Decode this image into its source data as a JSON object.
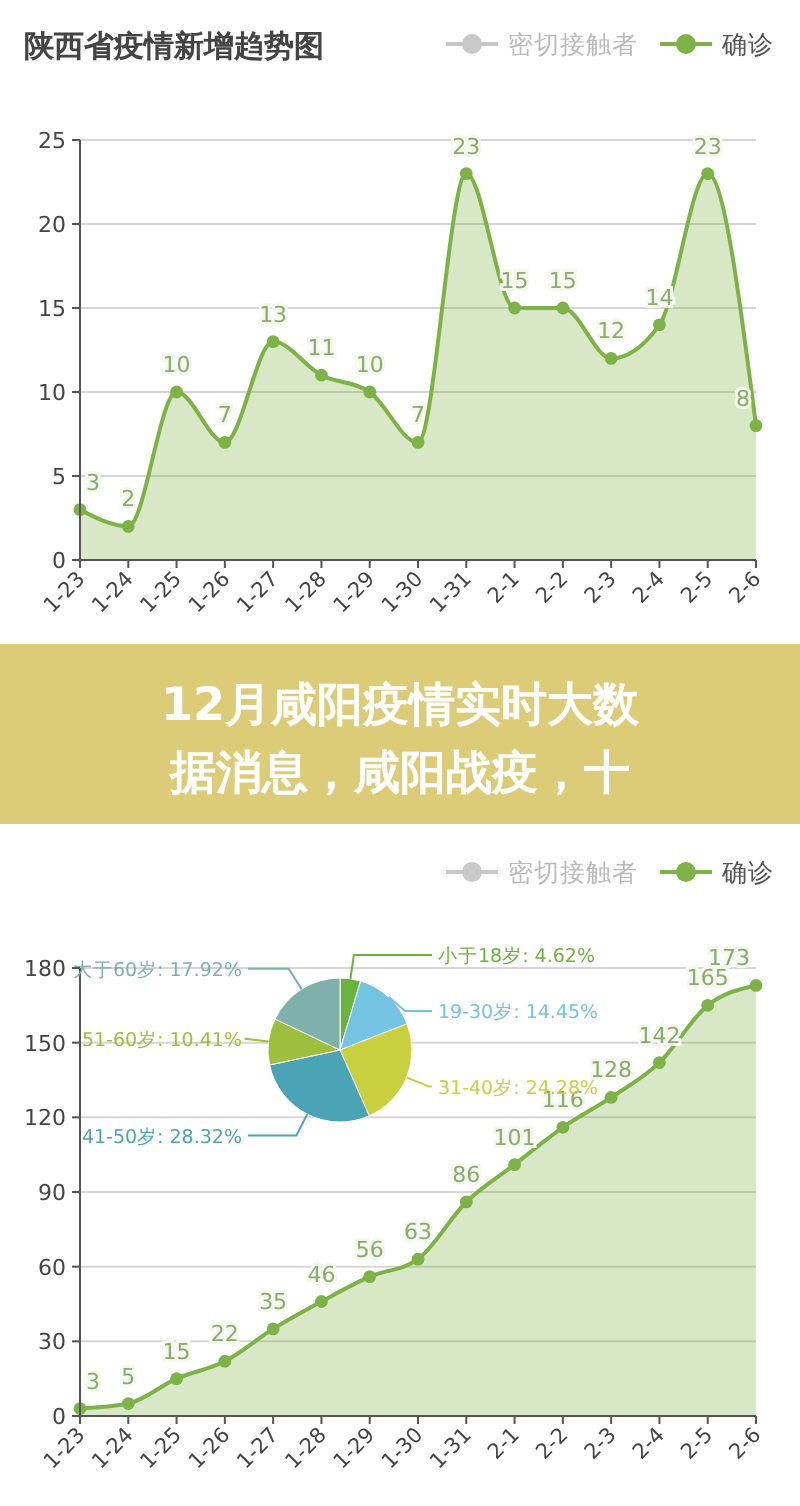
{
  "chart_data": [
    {
      "type": "area",
      "title": "陕西省疫情新增趋势图",
      "categories": [
        "1-23",
        "1-24",
        "1-25",
        "1-26",
        "1-27",
        "1-28",
        "1-29",
        "1-30",
        "1-31",
        "2-1",
        "2-2",
        "2-3",
        "2-4",
        "2-5",
        "2-6"
      ],
      "series": [
        {
          "name": "密切接触者",
          "color": "#c8c8c8",
          "values": [
            null,
            null,
            null,
            null,
            null,
            null,
            null,
            null,
            null,
            null,
            null,
            null,
            null,
            null,
            null
          ]
        },
        {
          "name": "确诊",
          "color": "#7db346",
          "values": [
            3,
            2,
            10,
            7,
            13,
            11,
            10,
            7,
            23,
            15,
            15,
            12,
            14,
            23,
            8
          ]
        }
      ],
      "ylim": [
        0,
        25
      ],
      "yticks": [
        0,
        5,
        10,
        15,
        20,
        25
      ],
      "grid": "y",
      "legend": "top right",
      "marker": "circle",
      "data_labels": true
    },
    {
      "type": "other",
      "title": "12月咸阳疫情实时大数据消息，咸阳战疫，十"
    },
    {
      "type": "area",
      "categories": [
        "1-23",
        "1-24",
        "1-25",
        "1-26",
        "1-27",
        "1-28",
        "1-29",
        "1-30",
        "1-31",
        "2-1",
        "2-2",
        "2-3",
        "2-4",
        "2-5",
        "2-6"
      ],
      "series": [
        {
          "name": "密切接触者",
          "color": "#c8c8c8",
          "values": [
            null,
            null,
            null,
            null,
            null,
            null,
            null,
            null,
            null,
            null,
            null,
            null,
            null,
            null,
            null
          ]
        },
        {
          "name": "确诊",
          "color": "#7db346",
          "values": [
            3,
            5,
            15,
            22,
            35,
            46,
            56,
            63,
            86,
            101,
            116,
            128,
            142,
            165,
            173
          ]
        }
      ],
      "ylim": [
        0,
        180
      ],
      "yticks": [
        0,
        30,
        60,
        90,
        120,
        150,
        180
      ],
      "grid": "y",
      "legend": "top right",
      "marker": "circle",
      "data_labels": true
    },
    {
      "type": "pie",
      "categories": [
        "小于18岁",
        "19-30岁",
        "31-40岁",
        "41-50岁",
        "51-60岁",
        "大于60岁"
      ],
      "values": [
        4.62,
        14.45,
        24.28,
        28.32,
        10.41,
        17.92
      ],
      "value_labels": [
        "4.62%",
        "14.45%",
        "24.28%",
        "28.32%",
        "10.41%",
        "17.92%"
      ],
      "colors": [
        "#6cb33e",
        "#74c3e3",
        "#c9d03f",
        "#4ba4b6",
        "#9dbf3d",
        "#7eb1ab"
      ],
      "data_labels": true
    }
  ]
}
